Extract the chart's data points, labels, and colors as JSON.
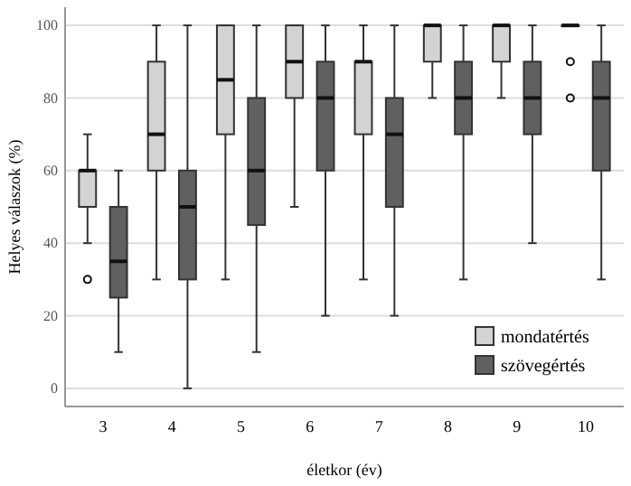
{
  "chart_data": {
    "type": "box",
    "xlabel": "életkor (év)",
    "ylabel": "Helyes válaszok (%)",
    "categories": [
      "3",
      "4",
      "5",
      "6",
      "7",
      "8",
      "9",
      "10"
    ],
    "ylim": [
      -5,
      105
    ],
    "yticks": [
      0,
      20,
      40,
      60,
      80,
      100
    ],
    "grid": "y",
    "legend": "bottom right",
    "series": [
      {
        "name": "mondatértés",
        "color": "#d3d3d3",
        "boxes": [
          {
            "low": 40,
            "q1": 50,
            "median": 60,
            "q3": 60,
            "high": 70,
            "outliers": [
              30
            ]
          },
          {
            "low": 30,
            "q1": 60,
            "median": 70,
            "q3": 90,
            "high": 100
          },
          {
            "low": 30,
            "q1": 70,
            "median": 85,
            "q3": 100,
            "high": 100
          },
          {
            "low": 50,
            "q1": 80,
            "median": 90,
            "q3": 100,
            "high": 100
          },
          {
            "low": 30,
            "q1": 70,
            "median": 90,
            "q3": 90,
            "high": 100
          },
          {
            "low": 80,
            "q1": 90,
            "median": 100,
            "q3": 100,
            "high": 100
          },
          {
            "low": 80,
            "q1": 90,
            "median": 100,
            "q3": 100,
            "high": 100
          },
          {
            "low": 100,
            "q1": 100,
            "median": 100,
            "q3": 100,
            "high": 100,
            "outliers": [
              80,
              90
            ]
          }
        ]
      },
      {
        "name": "szövegértés",
        "color": "#606060",
        "boxes": [
          {
            "low": 10,
            "q1": 25,
            "median": 35,
            "q3": 50,
            "high": 60
          },
          {
            "low": 0,
            "q1": 30,
            "median": 50,
            "q3": 60,
            "high": 100
          },
          {
            "low": 10,
            "q1": 45,
            "median": 60,
            "q3": 80,
            "high": 100
          },
          {
            "low": 20,
            "q1": 60,
            "median": 80,
            "q3": 90,
            "high": 100
          },
          {
            "low": 20,
            "q1": 50,
            "median": 70,
            "q3": 80,
            "high": 100
          },
          {
            "low": 30,
            "q1": 70,
            "median": 80,
            "q3": 90,
            "high": 100
          },
          {
            "low": 40,
            "q1": 70,
            "median": 80,
            "q3": 90,
            "high": 100
          },
          {
            "low": 30,
            "q1": 60,
            "median": 80,
            "q3": 90,
            "high": 100
          }
        ]
      }
    ]
  }
}
